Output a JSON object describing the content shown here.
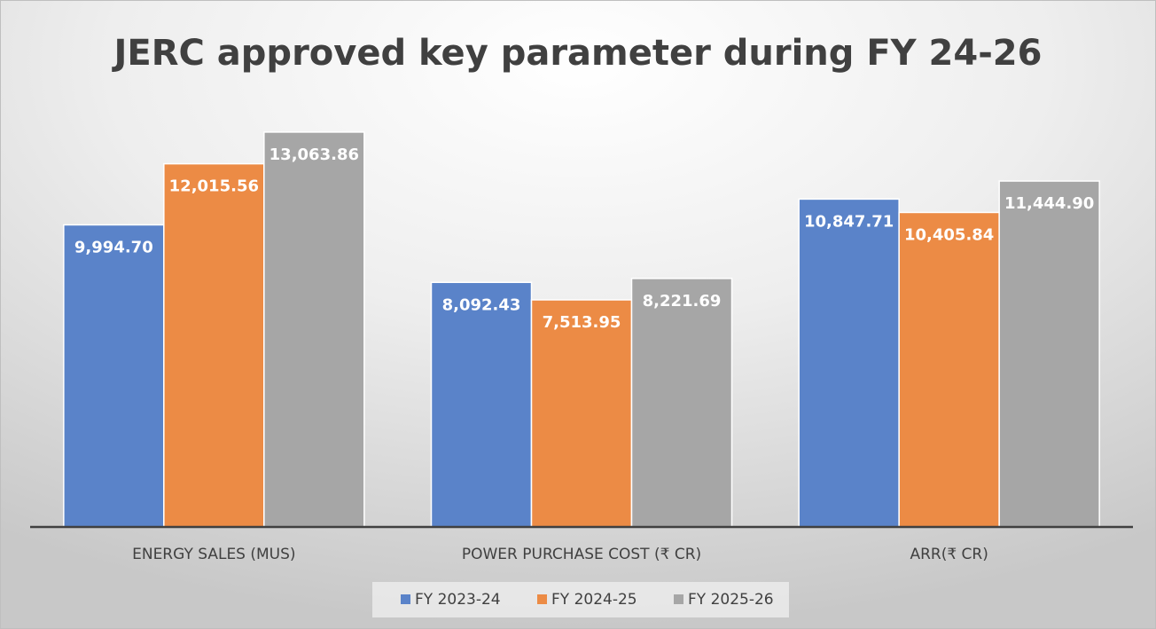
{
  "chart_data": {
    "type": "bar",
    "title": "JERC approved key parameter during FY 24-26",
    "categories": [
      "ENERGY SALES (MUS)",
      "POWER PURCHASE COST (₹ CR)",
      "ARR(₹ CR)"
    ],
    "series": [
      {
        "name": "FY 2023-24",
        "color": "#5a83c9",
        "values": [
          9994.7,
          8092.43,
          10847.71
        ],
        "value_labels": [
          "9,994.70",
          "8,092.43",
          "10,847.71"
        ]
      },
      {
        "name": "FY 2024-25",
        "color": "#ec8b45",
        "values": [
          12015.56,
          7513.95,
          10405.84
        ],
        "value_labels": [
          "12,015.56",
          "7,513.95",
          "10,405.84"
        ]
      },
      {
        "name": "FY 2025-26",
        "color": "#a6a6a6",
        "values": [
          13063.86,
          8221.69,
          11444.9
        ],
        "value_labels": [
          "13,063.86",
          "8,221.69",
          "11,444.90"
        ]
      }
    ],
    "ylim": [
      0,
      14000
    ],
    "legend": "bottom"
  }
}
